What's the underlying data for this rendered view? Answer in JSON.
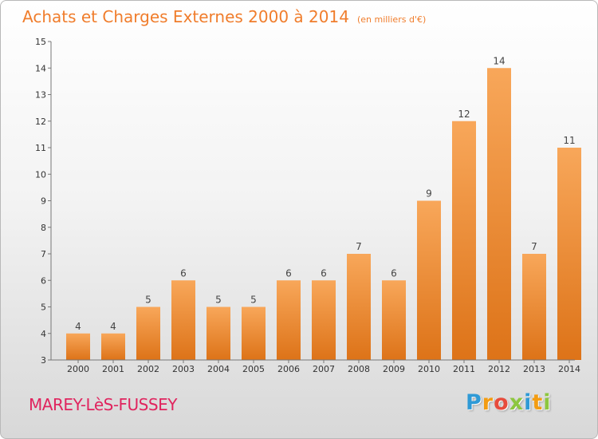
{
  "title": "Achats et Charges Externes 2000 à 2014",
  "subtitle": "(en milliers d'€)",
  "commune": "MAREY-LèS-FUSSEY",
  "logo": {
    "letters": [
      "P",
      "r",
      "o",
      "x",
      "i",
      "t",
      "i"
    ],
    "colors": [
      "#2f9ad6",
      "#f39c12",
      "#e74c3c",
      "#8dc63f",
      "#2f9ad6",
      "#f39c12",
      "#8dc63f"
    ]
  },
  "colors": {
    "title": "#f07d2c",
    "bar_light": "#f8a75a",
    "bar_dark": "#dd7318",
    "commune": "#e0245e"
  },
  "chart_data": {
    "type": "bar",
    "title": "Achats et Charges Externes 2000 à 2014",
    "subtitle": "(en milliers d'€)",
    "categories": [
      "2000",
      "2001",
      "2002",
      "2003",
      "2004",
      "2005",
      "2006",
      "2007",
      "2008",
      "2009",
      "2010",
      "2011",
      "2012",
      "2013",
      "2014"
    ],
    "values": [
      4,
      4,
      5,
      6,
      5,
      5,
      6,
      6,
      7,
      6,
      9,
      12,
      14,
      7,
      11
    ],
    "ylim": [
      3,
      15
    ],
    "yticks": [
      3,
      4,
      5,
      6,
      7,
      8,
      9,
      10,
      11,
      12,
      13,
      14,
      15
    ],
    "grid": false,
    "legend": "none"
  }
}
